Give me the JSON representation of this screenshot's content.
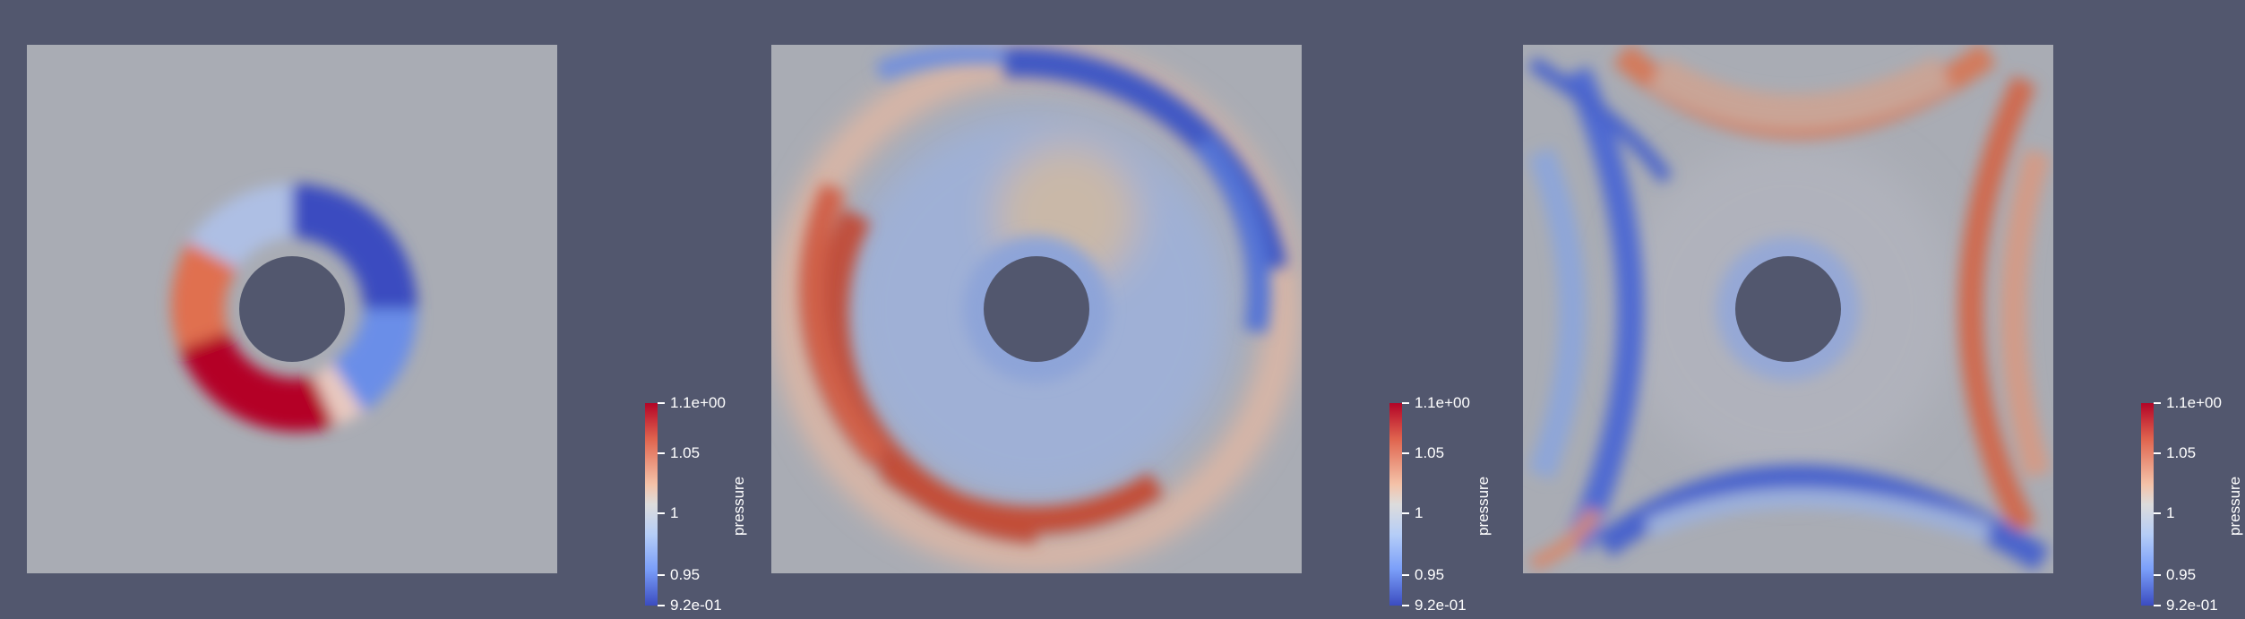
{
  "colors": {
    "background": "#52576e",
    "field_neutral": "#a9acb4",
    "hole": "#52576e",
    "high": "#b40426",
    "low": "#3b4cc0"
  },
  "panels": [
    {
      "colorbar": {
        "title": "pressure",
        "labels": [
          "1.1e+00",
          "1.05",
          "1",
          "0.95",
          "9.2e-01"
        ]
      }
    },
    {
      "colorbar": {
        "title": "pressure",
        "labels": [
          "1.1e+00",
          "1.05",
          "1",
          "0.95",
          "9.2e-01"
        ]
      }
    },
    {
      "colorbar": {
        "title": "pressure",
        "labels": [
          "1.1e+00",
          "1.05",
          "1",
          "0.95",
          "9.2e-01"
        ]
      }
    }
  ]
}
